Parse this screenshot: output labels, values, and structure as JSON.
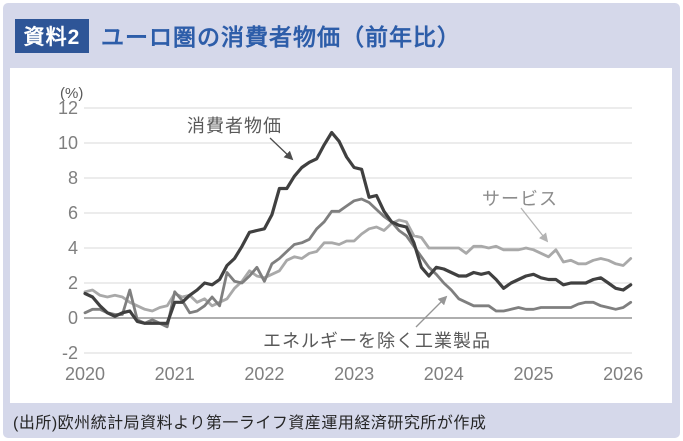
{
  "header": {
    "badge": "資料2",
    "title": "ユーロ圏の消費者物価（前年比）"
  },
  "footer": {
    "source": "(出所)欧州統計局資料より第一ライフ資産運用経済研究所が作成"
  },
  "colors": {
    "background": "#d5d8ea",
    "badge_bg": "#2e5597",
    "badge_text": "#ffffff",
    "title_text": "#2d5da9",
    "card_bg": "#ffffff",
    "grid": "#d9d9d9",
    "zero_line": "#a3a3a3",
    "tick_text": "#7f7f7f",
    "annotation_dark": "#595959",
    "annotation_light": "#8c8c8c",
    "footer_text": "#262626",
    "cpi_line": "#404040",
    "services_line": "#a9a9a9",
    "goods_line": "#7f7f7f"
  },
  "chart_data": {
    "type": "line",
    "title": "ユーロ圏の消費者物価（前年比）",
    "unit_label": "(%)",
    "xlabel": "",
    "ylabel": "(%)",
    "ylim": [
      -2,
      12
    ],
    "yticks": [
      12,
      10,
      8,
      6,
      4,
      2,
      0,
      -2
    ],
    "x_ticks": [
      "2020",
      "2021",
      "2022",
      "2023",
      "2024",
      "2025",
      "2026"
    ],
    "x_frequency": "monthly",
    "x_range": "2020-01 to 2026-02",
    "grid": "horizontal",
    "legend": "inline-annotations",
    "series": [
      {
        "key": "cpi",
        "name": "消費者物価",
        "color": "#404040",
        "width": 3.2,
        "values": [
          1.4,
          1.2,
          0.7,
          0.3,
          0.1,
          0.3,
          0.4,
          -0.2,
          -0.3,
          -0.3,
          -0.3,
          -0.3,
          0.9,
          0.9,
          1.3,
          1.6,
          2.0,
          1.9,
          2.2,
          3.0,
          3.4,
          4.1,
          4.9,
          5.0,
          5.1,
          5.9,
          7.4,
          7.4,
          8.1,
          8.6,
          8.9,
          9.1,
          9.9,
          10.6,
          10.1,
          9.2,
          8.6,
          8.5,
          6.9,
          7.0,
          6.1,
          5.5,
          5.3,
          5.2,
          4.3,
          2.9,
          2.4,
          2.9,
          2.8,
          2.6,
          2.4,
          2.4,
          2.6,
          2.5,
          2.6,
          2.2,
          1.7,
          2.0,
          2.2,
          2.4,
          2.5,
          2.3,
          2.2,
          2.2,
          1.9,
          2.0,
          2.0,
          2.0,
          2.2,
          2.3,
          2.0,
          1.7,
          1.6,
          1.9
        ]
      },
      {
        "key": "services",
        "name": "サービス",
        "color": "#a9a9a9",
        "width": 2.8,
        "values": [
          1.5,
          1.6,
          1.3,
          1.2,
          1.3,
          1.2,
          0.9,
          0.7,
          0.5,
          0.4,
          0.6,
          0.7,
          1.4,
          1.2,
          1.3,
          0.9,
          1.1,
          0.7,
          0.9,
          1.1,
          1.7,
          2.1,
          2.7,
          2.4,
          2.3,
          2.5,
          2.7,
          3.3,
          3.5,
          3.4,
          3.7,
          3.8,
          4.3,
          4.3,
          4.2,
          4.4,
          4.4,
          4.8,
          5.1,
          5.2,
          5.0,
          5.4,
          5.6,
          5.5,
          4.7,
          4.6,
          4.0,
          4.0,
          4.0,
          4.0,
          4.0,
          3.7,
          4.1,
          4.1,
          4.0,
          4.1,
          3.9,
          3.9,
          3.9,
          4.0,
          3.9,
          3.7,
          3.5,
          3.9,
          3.2,
          3.3,
          3.1,
          3.1,
          3.3,
          3.4,
          3.3,
          3.1,
          3.0,
          3.4
        ]
      },
      {
        "key": "goods",
        "name": "エネルギーを除く工業製品",
        "color": "#7f7f7f",
        "width": 2.8,
        "values": [
          0.3,
          0.5,
          0.5,
          0.3,
          0.2,
          0.2,
          1.6,
          -0.1,
          -0.3,
          -0.1,
          -0.3,
          -0.5,
          1.5,
          1.0,
          0.3,
          0.4,
          0.7,
          1.2,
          0.7,
          2.6,
          2.1,
          2.0,
          2.4,
          2.9,
          2.1,
          3.1,
          3.4,
          3.8,
          4.2,
          4.3,
          4.5,
          5.1,
          5.5,
          6.1,
          6.1,
          6.4,
          6.7,
          6.8,
          6.6,
          6.2,
          5.8,
          5.5,
          5.0,
          4.7,
          4.1,
          3.5,
          2.9,
          2.5,
          2.0,
          1.6,
          1.1,
          0.9,
          0.7,
          0.7,
          0.7,
          0.4,
          0.4,
          0.5,
          0.6,
          0.5,
          0.5,
          0.6,
          0.6,
          0.6,
          0.6,
          0.6,
          0.8,
          0.9,
          0.9,
          0.7,
          0.6,
          0.5,
          0.6,
          0.9
        ]
      }
    ]
  }
}
